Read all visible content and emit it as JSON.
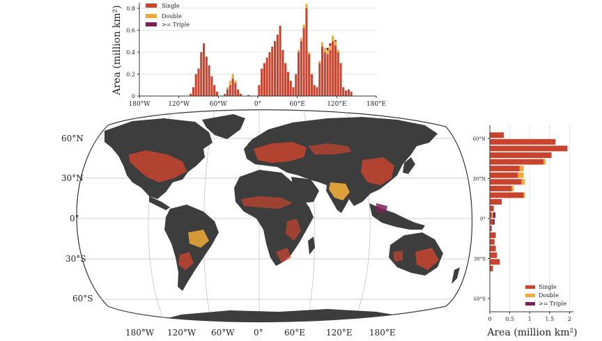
{
  "chart_data": [
    {
      "type": "bar",
      "orientation": "vertical",
      "stacked": true,
      "title": "",
      "xlabel": "",
      "ylabel": "Area (million km²)",
      "xlim": [
        -180,
        180
      ],
      "ylim": [
        0,
        0.85
      ],
      "x_ticks": [
        -180,
        -120,
        -60,
        0,
        60,
        120,
        180
      ],
      "x_tick_labels": [
        "180°W",
        "120°W",
        "60°W",
        "0°",
        "60°E",
        "120°E",
        "180°E"
      ],
      "y_ticks": [
        0,
        0.2,
        0.4,
        0.6,
        0.8
      ],
      "y_tick_labels": [
        "0",
        "0.2",
        "0.4",
        "0.6",
        "0.8"
      ],
      "bin_width_deg": 4,
      "x": [
        -130,
        -126,
        -122,
        -118,
        -114,
        -110,
        -106,
        -102,
        -98,
        -94,
        -90,
        -86,
        -82,
        -78,
        -74,
        -70,
        -66,
        -62,
        -58,
        -54,
        -50,
        -46,
        -42,
        -38,
        -34,
        -30,
        -26,
        -22,
        -18,
        -14,
        -10,
        -6,
        -2,
        2,
        6,
        10,
        14,
        18,
        22,
        26,
        30,
        34,
        38,
        42,
        46,
        50,
        54,
        58,
        62,
        66,
        70,
        74,
        78,
        82,
        86,
        90,
        94,
        98,
        102,
        106,
        110,
        114,
        118,
        122,
        126,
        130,
        134,
        138,
        142,
        146,
        150,
        154
      ],
      "series": [
        {
          "name": "Single",
          "color": "#c8442f",
          "values": [
            0,
            0,
            0,
            0,
            0,
            0,
            0,
            0.02,
            0.08,
            0.2,
            0.25,
            0.4,
            0.48,
            0.36,
            0.28,
            0.18,
            0.1,
            0.04,
            0,
            0,
            0.02,
            0.06,
            0.1,
            0.16,
            0.12,
            0.06,
            0.02,
            0,
            0,
            0.01,
            0,
            0,
            0,
            0.1,
            0.25,
            0.3,
            0.35,
            0.4,
            0.45,
            0.5,
            0.56,
            0.64,
            0.42,
            0.3,
            0.22,
            0.14,
            0.08,
            0.2,
            0.4,
            0.5,
            0.62,
            0.8,
            0.38,
            0.2,
            0.1,
            0.08,
            0.3,
            0.45,
            0.4,
            0.38,
            0.42,
            0.5,
            0.46,
            0.4,
            0.3,
            0.08,
            0.05,
            0.06,
            0.04,
            0,
            0,
            0
          ]
        },
        {
          "name": "Double",
          "color": "#eeaa36",
          "values": [
            0,
            0,
            0,
            0,
            0,
            0,
            0,
            0,
            0,
            0,
            0,
            0,
            0,
            0,
            0,
            0,
            0,
            0,
            0,
            0,
            0,
            0.02,
            0.04,
            0.04,
            0.02,
            0,
            0,
            0,
            0,
            0,
            0,
            0,
            0,
            0,
            0,
            0,
            0,
            0,
            0,
            0,
            0,
            0,
            0,
            0,
            0,
            0,
            0,
            0,
            0.02,
            0.03,
            0.03,
            0.04,
            0.02,
            0,
            0,
            0,
            0.02,
            0.04,
            0.04,
            0.04,
            0.04,
            0.05,
            0.04,
            0.02,
            0,
            0,
            0,
            0,
            0,
            0,
            0,
            0
          ]
        },
        {
          "name": ">= Triple",
          "color": "#7a2154",
          "values": [
            0,
            0,
            0,
            0,
            0,
            0,
            0,
            0,
            0,
            0,
            0,
            0,
            0,
            0,
            0,
            0,
            0,
            0,
            0,
            0,
            0,
            0,
            0,
            0,
            0,
            0,
            0,
            0,
            0,
            0,
            0,
            0,
            0,
            0,
            0,
            0,
            0,
            0,
            0,
            0,
            0,
            0,
            0,
            0,
            0,
            0,
            0,
            0,
            0,
            0,
            0,
            0,
            0,
            0,
            0,
            0,
            0,
            0,
            0,
            0.02,
            0.02,
            0,
            0.01,
            0,
            0,
            0,
            0,
            0,
            0,
            0,
            0,
            0
          ]
        }
      ],
      "legend_position": "top-left"
    },
    {
      "type": "bar",
      "orientation": "horizontal",
      "stacked": true,
      "title": "",
      "xlabel": "Area (million km²)",
      "ylabel": "",
      "xlim": [
        0,
        2.1
      ],
      "ylim": [
        -90,
        90
      ],
      "x_ticks": [
        0,
        0.5,
        1,
        1.5,
        2
      ],
      "x_tick_labels": [
        "0",
        "0.5",
        "1",
        "1.5",
        "2"
      ],
      "y_ticks": [
        60,
        30,
        0,
        -30,
        -60
      ],
      "y_tick_labels": [
        "60°N",
        "30°N",
        "0°",
        "30°S",
        "60°S"
      ],
      "bin_width_deg": 5,
      "y": [
        62.5,
        57.5,
        52.5,
        47.5,
        42.5,
        37.5,
        32.5,
        27.5,
        22.5,
        17.5,
        12.5,
        7.5,
        2.5,
        -2.5,
        -7.5,
        -12.5,
        -17.5,
        -22.5,
        -27.5,
        -32.5,
        -37.5
      ],
      "series": [
        {
          "name": "Single",
          "color": "#c8442f",
          "values": [
            0.35,
            1.65,
            1.95,
            1.55,
            1.35,
            0.75,
            0.7,
            0.8,
            0.55,
            0.85,
            0.3,
            0.1,
            0.05,
            0.08,
            0.05,
            0.15,
            0.12,
            0.15,
            0.18,
            0.25,
            0.08
          ]
        },
        {
          "name": "Double",
          "color": "#eeaa36",
          "values": [
            0,
            0,
            0,
            0,
            0.05,
            0.1,
            0.15,
            0.08,
            0.05,
            0.03,
            0,
            0,
            0.03,
            0,
            0,
            0,
            0,
            0,
            0,
            0,
            0
          ]
        },
        {
          "name": ">= Triple",
          "color": "#7a2154",
          "values": [
            0,
            0,
            0,
            0,
            0,
            0,
            0,
            0,
            0,
            0,
            0,
            0,
            0.06,
            0.04,
            0,
            0,
            0,
            0,
            0,
            0,
            0
          ]
        }
      ],
      "legend_position": "bottom-right"
    },
    {
      "type": "map",
      "projection": "Robinson-like",
      "lon_ticks": [
        -180,
        -120,
        -60,
        0,
        60,
        120,
        180
      ],
      "lon_tick_labels": [
        "180°W",
        "120°W",
        "60°W",
        "0°",
        "60°E",
        "120°E",
        "180°E"
      ],
      "lat_ticks": [
        60,
        30,
        0,
        -30,
        -60
      ],
      "lat_tick_labels": [
        "60°N",
        "30°N",
        "0°",
        "30°S",
        "60°S"
      ],
      "land_color": "#3d3d3d",
      "ocean_color": "#ffffff",
      "cropping_colors": {
        "Single": "#c8442f",
        "Double": "#eeaa36",
        ">= Triple": "#7a2154"
      }
    }
  ]
}
